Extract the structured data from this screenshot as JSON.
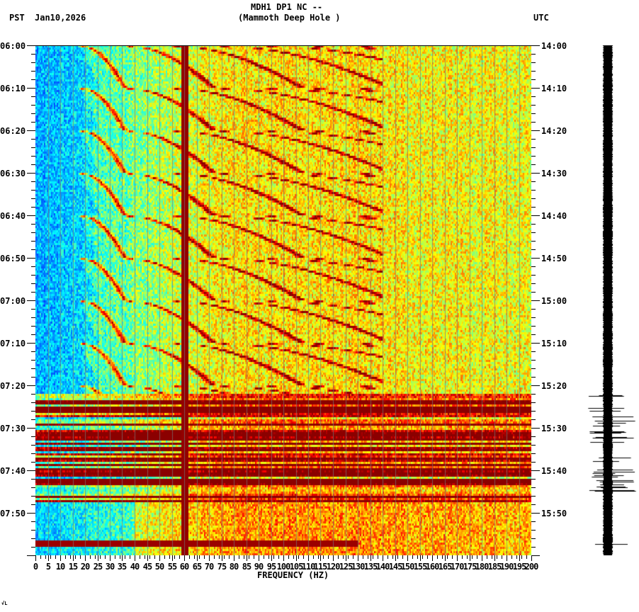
{
  "header": {
    "station_line": "MDH1 DP1 NC --",
    "site_line": "(Mammoth Deep Hole )",
    "left_tz": "PST",
    "date": "Jan10,2026",
    "right_tz": "UTC"
  },
  "footer_mark": "√L",
  "chart_data": {
    "type": "heatmap",
    "title": "MDH1 DP1 NC -- (Mammoth Deep Hole )",
    "subtitle": "Jan10,2026",
    "xlabel": "FREQUENCY (HZ)",
    "ylabel_left": "PST",
    "ylabel_right": "UTC",
    "x_range": [
      0,
      200
    ],
    "x_ticks": [
      "0",
      "5",
      "10",
      "15",
      "20",
      "25",
      "30",
      "35",
      "40",
      "45",
      "50",
      "55",
      "60",
      "65",
      "70",
      "75",
      "80",
      "85",
      "90",
      "95",
      "100",
      "105",
      "110",
      "115",
      "120",
      "125",
      "130",
      "135",
      "140",
      "145",
      "150",
      "155",
      "160",
      "165",
      "170",
      "175",
      "180",
      "185",
      "190",
      "195",
      "200"
    ],
    "y_ticks_left": [
      "06:00",
      "06:10",
      "06:20",
      "06:30",
      "06:40",
      "06:50",
      "07:00",
      "07:10",
      "07:20",
      "07:30",
      "07:40",
      "07:50"
    ],
    "y_ticks_right": [
      "14:00",
      "14:10",
      "14:20",
      "14:30",
      "14:40",
      "14:50",
      "15:00",
      "15:10",
      "15:20",
      "15:30",
      "15:40",
      "15:50"
    ],
    "time_span_minutes": 120,
    "colormap": [
      "#0040ff",
      "#00a0ff",
      "#00ffff",
      "#80ff80",
      "#ffff00",
      "#ff8000",
      "#ff0000",
      "#8b0000"
    ],
    "features": [
      {
        "type": "persistent_line",
        "frequency_hz": 60,
        "color": "#8b0000"
      },
      {
        "type": "curved_harmonic_sweeps",
        "repeat_minutes": 10,
        "start_freq_hz_min": 18,
        "note": "arc-shaped harmonics rising in frequency over each ~10 min interval"
      },
      {
        "type": "broadband_event",
        "start": "07:22",
        "end": "07:47",
        "utc_start": "15:22"
      },
      {
        "type": "broadband_line",
        "time": "07:25.5"
      },
      {
        "type": "broadband_line",
        "time": "07:57"
      }
    ],
    "waveform": {
      "position": "right",
      "event_start": "15:22",
      "color": "#000000"
    },
    "grid": true
  }
}
